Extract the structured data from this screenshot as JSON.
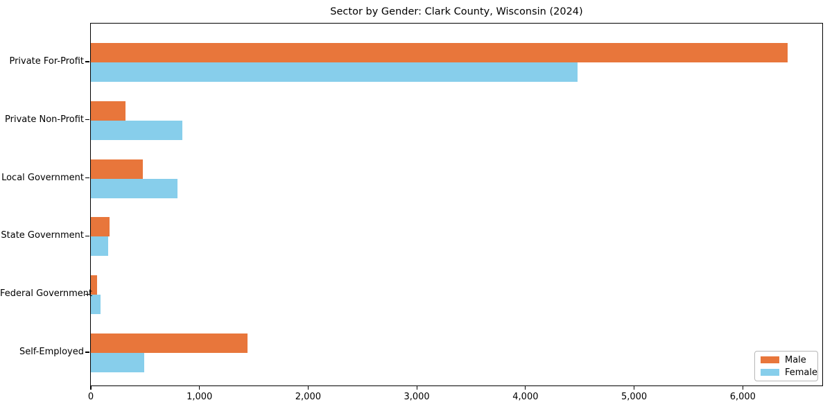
{
  "title": "Sector by Gender: Clark County, Wisconsin (2024)",
  "chart_data": {
    "type": "bar",
    "orientation": "horizontal",
    "title": "Sector by Gender: Clark County, Wisconsin (2024)",
    "xlabel": "",
    "ylabel": "",
    "categories": [
      "Private For-Profit",
      "Private Non-Profit",
      "Local Government",
      "State Government",
      "Federal Government",
      "Self-Employed"
    ],
    "series": [
      {
        "name": "Male",
        "color": "#e8763b",
        "values": [
          6410,
          320,
          480,
          170,
          60,
          1440
        ]
      },
      {
        "name": "Female",
        "color": "#87ceeb",
        "values": [
          4480,
          840,
          795,
          160,
          90,
          490
        ]
      }
    ],
    "xlim": [
      0,
      6732
    ],
    "x_ticks": [
      0,
      1000,
      2000,
      3000,
      4000,
      5000,
      6000
    ],
    "x_tick_labels": [
      "0",
      "1,000",
      "2,000",
      "3,000",
      "4,000",
      "5,000",
      "6,000"
    ],
    "grid": false,
    "legend": {
      "position": "lower right",
      "entries": [
        "Male",
        "Female"
      ]
    }
  }
}
